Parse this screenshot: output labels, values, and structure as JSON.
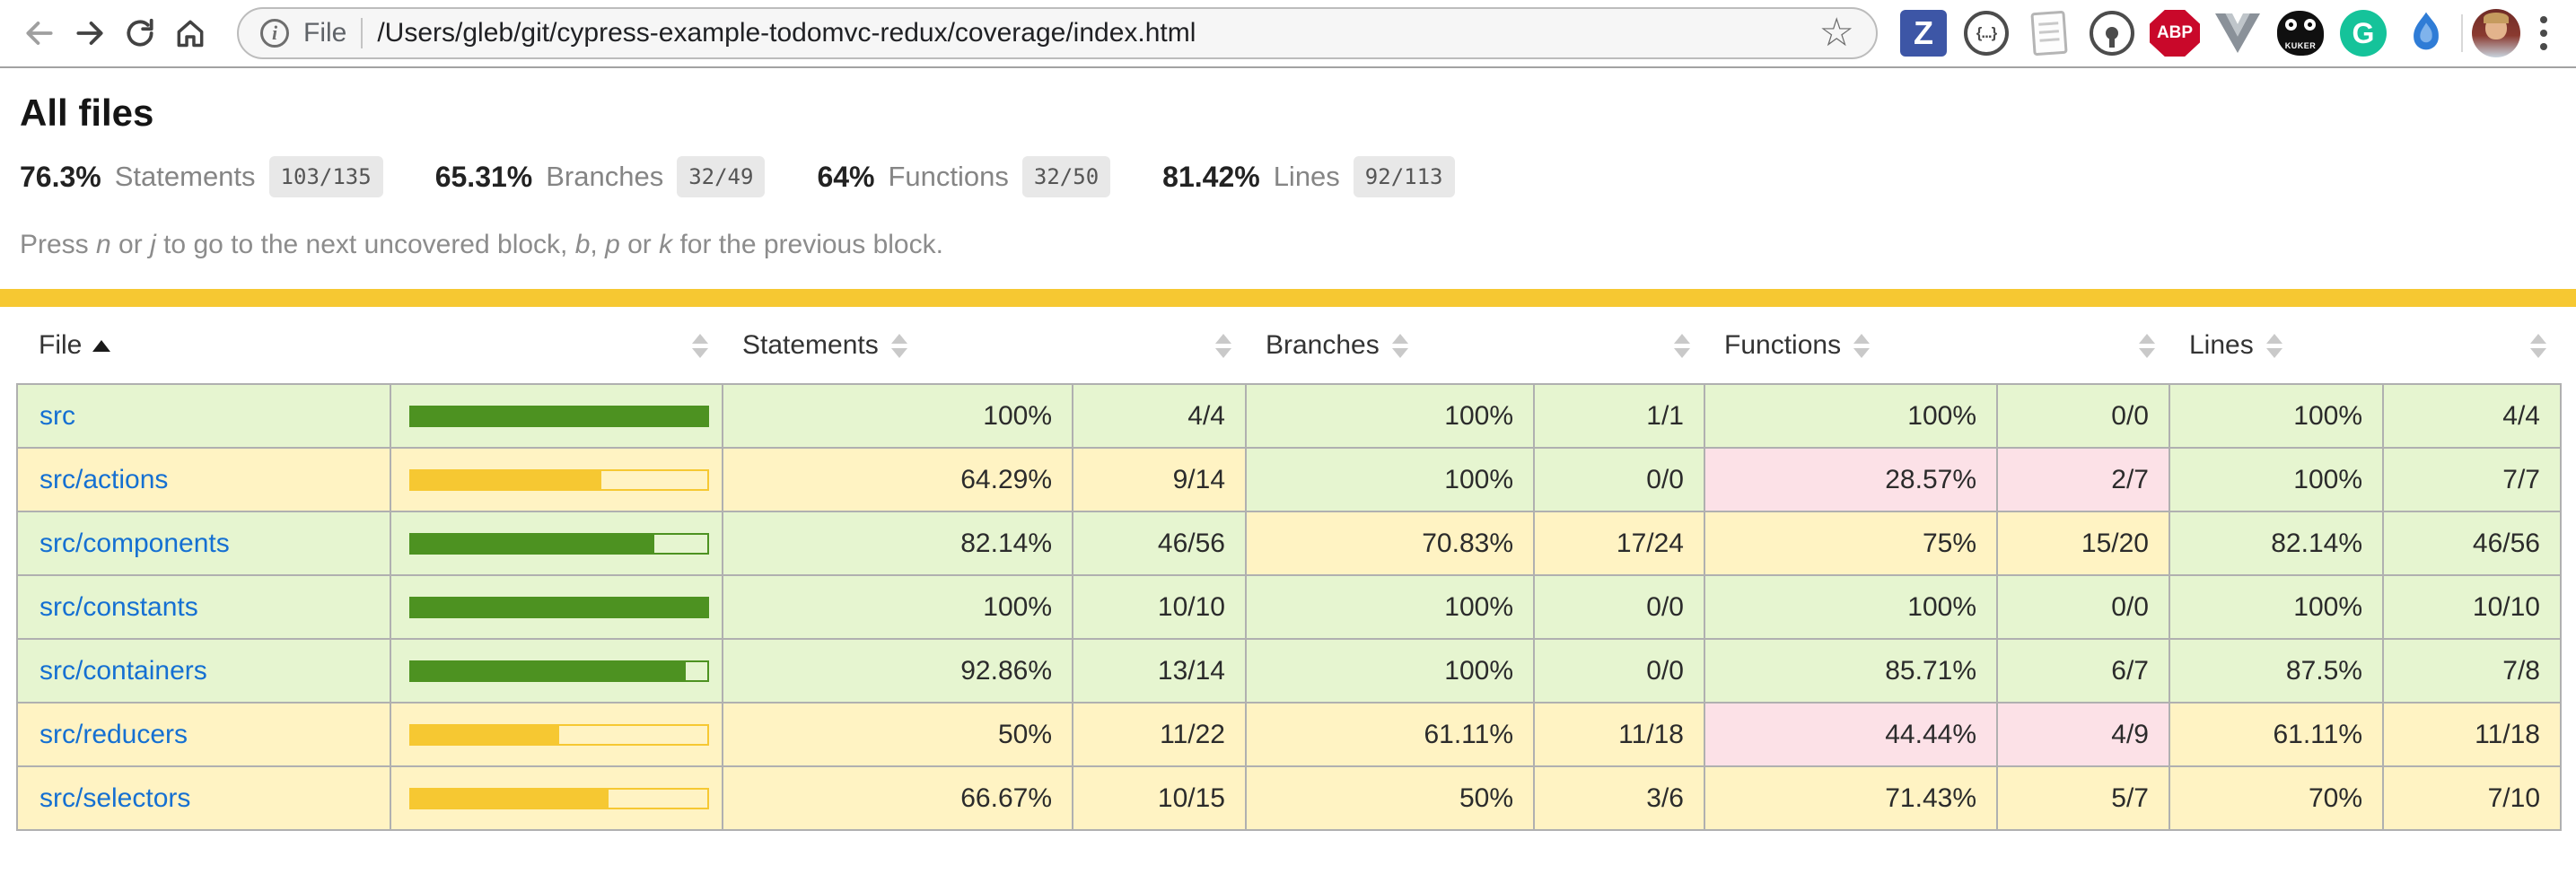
{
  "theme": {
    "status": "#f6c832",
    "green": "#4d9221",
    "yellow": "#f6c832",
    "high": "#e6f5d0",
    "medium": "#fff3c3",
    "low": "#fce1e7",
    "link": "#1570d2",
    "grid": "#b0b0b0"
  },
  "browser": {
    "scheme_label": "File",
    "url": "/Users/gleb/git/cypress-example-todomvc-redux/coverage/index.html",
    "info_glyph": "i",
    "star_glyph": "☆",
    "extensions": {
      "z_letter": "Z",
      "json_label": "{...}",
      "abp_label": "ABP",
      "kuker_label": "KUKER",
      "grammarly_letter": "G"
    }
  },
  "page": {
    "title": "All files",
    "summary": [
      {
        "pct": "76.3%",
        "label": "Statements",
        "fraction": "103/135"
      },
      {
        "pct": "65.31%",
        "label": "Branches",
        "fraction": "32/49"
      },
      {
        "pct": "64%",
        "label": "Functions",
        "fraction": "32/50"
      },
      {
        "pct": "81.42%",
        "label": "Lines",
        "fraction": "92/113"
      }
    ],
    "hint": {
      "s1": "Press ",
      "k1": "n",
      "s2": " or ",
      "k2": "j",
      "s3": " to go to the next uncovered block, ",
      "k3": "b",
      "s4": ", ",
      "k4": "p",
      "s5": " or ",
      "k5": "k",
      "s6": " for the previous block."
    },
    "table": {
      "headers": {
        "file": "File",
        "statements": "Statements",
        "branches": "Branches",
        "functions": "Functions",
        "lines": "Lines"
      },
      "rows": [
        {
          "file": "src",
          "level": "high",
          "bar_pct": 100,
          "metrics": [
            {
              "pct": "100%",
              "frac": "4/4",
              "level": "high"
            },
            {
              "pct": "100%",
              "frac": "1/1",
              "level": "high"
            },
            {
              "pct": "100%",
              "frac": "0/0",
              "level": "high"
            },
            {
              "pct": "100%",
              "frac": "4/4",
              "level": "high"
            }
          ]
        },
        {
          "file": "src/actions",
          "level": "medium",
          "bar_pct": 64.29,
          "metrics": [
            {
              "pct": "64.29%",
              "frac": "9/14",
              "level": "medium"
            },
            {
              "pct": "100%",
              "frac": "0/0",
              "level": "high"
            },
            {
              "pct": "28.57%",
              "frac": "2/7",
              "level": "low"
            },
            {
              "pct": "100%",
              "frac": "7/7",
              "level": "high"
            }
          ]
        },
        {
          "file": "src/components",
          "level": "high",
          "bar_pct": 82.14,
          "metrics": [
            {
              "pct": "82.14%",
              "frac": "46/56",
              "level": "high"
            },
            {
              "pct": "70.83%",
              "frac": "17/24",
              "level": "medium"
            },
            {
              "pct": "75%",
              "frac": "15/20",
              "level": "medium"
            },
            {
              "pct": "82.14%",
              "frac": "46/56",
              "level": "high"
            }
          ]
        },
        {
          "file": "src/constants",
          "level": "high",
          "bar_pct": 100,
          "metrics": [
            {
              "pct": "100%",
              "frac": "10/10",
              "level": "high"
            },
            {
              "pct": "100%",
              "frac": "0/0",
              "level": "high"
            },
            {
              "pct": "100%",
              "frac": "0/0",
              "level": "high"
            },
            {
              "pct": "100%",
              "frac": "10/10",
              "level": "high"
            }
          ]
        },
        {
          "file": "src/containers",
          "level": "high",
          "bar_pct": 92.86,
          "metrics": [
            {
              "pct": "92.86%",
              "frac": "13/14",
              "level": "high"
            },
            {
              "pct": "100%",
              "frac": "0/0",
              "level": "high"
            },
            {
              "pct": "85.71%",
              "frac": "6/7",
              "level": "high"
            },
            {
              "pct": "87.5%",
              "frac": "7/8",
              "level": "high"
            }
          ]
        },
        {
          "file": "src/reducers",
          "level": "medium",
          "bar_pct": 50,
          "metrics": [
            {
              "pct": "50%",
              "frac": "11/22",
              "level": "medium"
            },
            {
              "pct": "61.11%",
              "frac": "11/18",
              "level": "medium"
            },
            {
              "pct": "44.44%",
              "frac": "4/9",
              "level": "low"
            },
            {
              "pct": "61.11%",
              "frac": "11/18",
              "level": "medium"
            }
          ]
        },
        {
          "file": "src/selectors",
          "level": "medium",
          "bar_pct": 66.67,
          "metrics": [
            {
              "pct": "66.67%",
              "frac": "10/15",
              "level": "medium"
            },
            {
              "pct": "50%",
              "frac": "3/6",
              "level": "medium"
            },
            {
              "pct": "71.43%",
              "frac": "5/7",
              "level": "medium"
            },
            {
              "pct": "70%",
              "frac": "7/10",
              "level": "medium"
            }
          ]
        }
      ]
    }
  }
}
